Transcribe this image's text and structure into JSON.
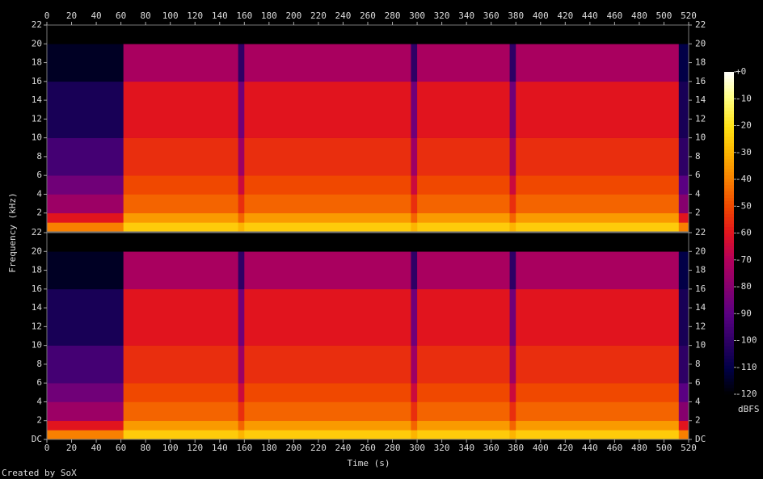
{
  "chart_data": [
    {
      "type": "spectrogram",
      "ylabel": "Frequency (kHz)",
      "xlim": [
        0,
        520
      ],
      "xticks": [
        0,
        20,
        40,
        60,
        80,
        100,
        120,
        140,
        160,
        180,
        200,
        220,
        240,
        260,
        280,
        300,
        320,
        340,
        360,
        380,
        400,
        420,
        440,
        460,
        480,
        500,
        520
      ],
      "ylim": [
        0,
        22
      ],
      "yticks": [
        2,
        4,
        6,
        8,
        10,
        12,
        14,
        16,
        18,
        20,
        22
      ],
      "x_edges": [
        0,
        62,
        155,
        160,
        295,
        300,
        375,
        380,
        512,
        520
      ],
      "y_edges": [
        0,
        1,
        2,
        4,
        6,
        10,
        16,
        20,
        22
      ],
      "values": [
        [
          -40,
          -60,
          -75,
          -85,
          -95,
          -105,
          -115,
          -120
        ],
        [
          -25,
          -35,
          -45,
          -50,
          -55,
          -60,
          -72,
          -120
        ],
        [
          -30,
          -45,
          -55,
          -65,
          -75,
          -85,
          -100,
          -120
        ],
        [
          -25,
          -35,
          -45,
          -50,
          -55,
          -60,
          -72,
          -120
        ],
        [
          -30,
          -45,
          -55,
          -65,
          -75,
          -85,
          -100,
          -120
        ],
        [
          -25,
          -35,
          -45,
          -50,
          -55,
          -60,
          -72,
          -120
        ],
        [
          -30,
          -45,
          -55,
          -65,
          -75,
          -85,
          -100,
          -120
        ],
        [
          -25,
          -35,
          -45,
          -50,
          -55,
          -60,
          -72,
          -120
        ],
        [
          -40,
          -60,
          -80,
          -90,
          -100,
          -105,
          -110,
          -120
        ]
      ]
    },
    {
      "type": "spectrogram",
      "xlabel": "Time (s)",
      "xlim": [
        0,
        520
      ],
      "xticks": [
        0,
        20,
        40,
        60,
        80,
        100,
        120,
        140,
        160,
        180,
        200,
        220,
        240,
        260,
        280,
        300,
        320,
        340,
        360,
        380,
        400,
        420,
        440,
        460,
        480,
        500,
        520
      ],
      "ylim": [
        0,
        22
      ],
      "yticks": [
        {
          "value": 0,
          "label": "DC"
        },
        2,
        4,
        6,
        8,
        10,
        12,
        14,
        16,
        18,
        20,
        22
      ],
      "x_edges": [
        0,
        62,
        155,
        160,
        295,
        300,
        375,
        380,
        512,
        520
      ],
      "y_edges": [
        0,
        1,
        2,
        4,
        6,
        10,
        16,
        20,
        22
      ],
      "values": [
        [
          -40,
          -60,
          -75,
          -85,
          -95,
          -105,
          -115,
          -120
        ],
        [
          -25,
          -35,
          -45,
          -50,
          -55,
          -60,
          -72,
          -120
        ],
        [
          -30,
          -45,
          -55,
          -65,
          -75,
          -85,
          -100,
          -120
        ],
        [
          -25,
          -35,
          -45,
          -50,
          -55,
          -60,
          -72,
          -120
        ],
        [
          -30,
          -45,
          -55,
          -65,
          -75,
          -85,
          -100,
          -120
        ],
        [
          -25,
          -35,
          -45,
          -50,
          -55,
          -60,
          -72,
          -120
        ],
        [
          -30,
          -45,
          -55,
          -65,
          -75,
          -85,
          -100,
          -120
        ],
        [
          -25,
          -35,
          -45,
          -50,
          -55,
          -60,
          -72,
          -120
        ],
        [
          -40,
          -60,
          -80,
          -90,
          -100,
          -105,
          -110,
          -120
        ]
      ]
    }
  ],
  "colorbar": {
    "label": "dBFS",
    "lim": [
      -120,
      0
    ],
    "ticks": [
      {
        "value": 0,
        "label": "+0"
      },
      -10,
      -20,
      -30,
      -40,
      -50,
      -60,
      -70,
      -80,
      -90,
      -100,
      -110,
      -120
    ]
  },
  "footer": "Created by SoX"
}
